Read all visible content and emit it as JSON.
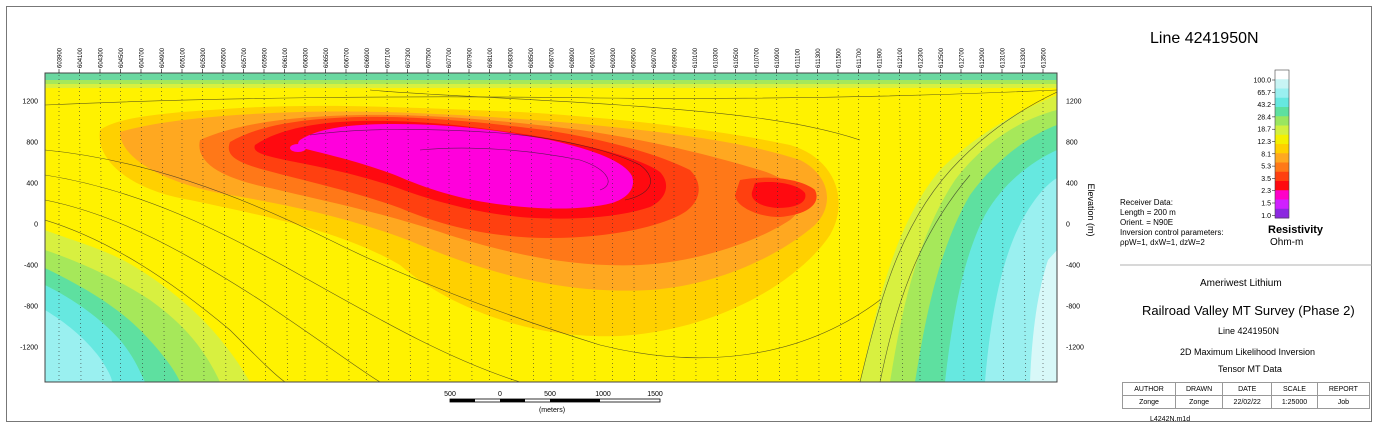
{
  "title": "Line 4241950N",
  "stations": [
    "603900",
    "604100",
    "604300",
    "604500",
    "604700",
    "604900",
    "605100",
    "605300",
    "605500",
    "605700",
    "605900",
    "606100",
    "606300",
    "606500",
    "606700",
    "606900",
    "607100",
    "607300",
    "607500",
    "607700",
    "607900",
    "608100",
    "608300",
    "608500",
    "608700",
    "608900",
    "609100",
    "609300",
    "609500",
    "609700",
    "609900",
    "610100",
    "610300",
    "610500",
    "610700",
    "610900",
    "611100",
    "611300",
    "611500",
    "611700",
    "611900",
    "612100",
    "612300",
    "612500",
    "612700",
    "612900",
    "613100",
    "613300",
    "613500"
  ],
  "elevation_axis": {
    "label": "Elevation (m)",
    "ticks": [
      "1200",
      "800",
      "400",
      "0",
      "-400",
      "-800",
      "-1200"
    ],
    "values": [
      1200,
      800,
      400,
      0,
      -400,
      -800,
      -1200
    ]
  },
  "scale_bar": {
    "labels": [
      "500",
      "0",
      "500",
      "1000",
      "1500"
    ],
    "units": "(meters)"
  },
  "receiver": {
    "lines": [
      "Receiver Data:",
      "Length = 200 m",
      "Orient. = N90E",
      "Inversion control parameters:",
      "ρpW=1, dxW=1, dzW=2"
    ]
  },
  "colorbar": {
    "title": "Resistivity",
    "units": "Ohm-m",
    "labels": [
      "100.0",
      "65.7",
      "43.2",
      "28.4",
      "18.7",
      "12.3",
      "8.1",
      "5.3",
      "3.5",
      "2.3",
      "1.5",
      "1.0"
    ],
    "colors": [
      "#ffffff",
      "#c8f4f4",
      "#9af0f0",
      "#66e8e0",
      "#5ee0a0",
      "#9ae660",
      "#d2f040",
      "#f4f000",
      "#ffd000",
      "#ffa820",
      "#ff7818",
      "#ff4010",
      "#ff0a10",
      "#ff00c8",
      "#d020ff",
      "#8c28e0"
    ]
  },
  "client": "Ameriwest Lithium",
  "survey": "Railroad Valley MT Survey (Phase 2)",
  "line_label": "Line 4241950N",
  "inversion": "2D Maximum Likelihood Inversion",
  "data_type": "Tensor MT Data",
  "title_block": {
    "headers": [
      "AUTHOR",
      "DRAWN",
      "DATE",
      "SCALE",
      "REPORT"
    ],
    "values": [
      "Zonge",
      "Zonge",
      "22/02/22",
      "1:25000",
      "Job"
    ],
    "filename": "L4242N.m1d"
  }
}
